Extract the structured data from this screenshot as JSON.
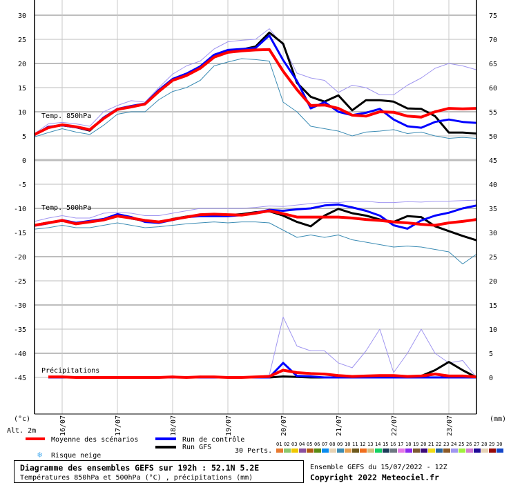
{
  "chart_data": {
    "type": "line",
    "title": "Diagramme des ensembles GEFS sur 192h : 52.1N 5.2E",
    "subtitle": "Températures 850hPa et 500hPa (°C) , précipitations (mm)",
    "run_info": "Ensemble GEFS du 15/07/2022 - 12Z",
    "copyright": "Copyright 2022 Meteociel.fr",
    "x_hours": [
      0,
      6,
      12,
      18,
      24,
      30,
      36,
      42,
      48,
      54,
      60,
      66,
      72,
      78,
      84,
      90,
      96,
      102,
      108,
      114,
      120,
      126,
      132,
      138,
      144,
      150,
      156,
      162,
      168,
      174,
      180,
      186,
      192
    ],
    "date_ticks": [
      {
        "hour": 12,
        "label": "16/07"
      },
      {
        "hour": 36,
        "label": "17/07"
      },
      {
        "hour": 60,
        "label": "18/07"
      },
      {
        "hour": 84,
        "label": "19/07"
      },
      {
        "hour": 108,
        "label": "20/07"
      },
      {
        "hour": 132,
        "label": "21/07"
      },
      {
        "hour": 156,
        "label": "22/07"
      },
      {
        "hour": 180,
        "label": "23/07"
      }
    ],
    "left_axis": {
      "unit_label": "(°c)",
      "altitude_label": "Alt. 2m",
      "ticks": [
        30,
        25,
        20,
        15,
        10,
        5,
        0,
        -5,
        -10,
        -15,
        -20,
        -25,
        -30,
        -35,
        -40,
        -45
      ],
      "range": [
        -45,
        30
      ]
    },
    "right_axis": {
      "unit_label": "(mm)",
      "ticks": [
        75,
        70,
        65,
        60,
        55,
        50,
        45,
        40,
        35,
        30,
        25,
        20,
        15,
        10,
        5,
        0
      ]
    },
    "grid": true,
    "panels": [
      {
        "label": "Temp. 850hPa",
        "mean": [
          5.3,
          6.7,
          7.3,
          6.9,
          6.3,
          8.6,
          10.5,
          11.0,
          11.6,
          14.2,
          16.5,
          17.5,
          19.0,
          21.3,
          22.3,
          22.6,
          22.8,
          22.9,
          18.4,
          14.6,
          11.3,
          11.4,
          10.7,
          9.3,
          9.1,
          10.0,
          9.9,
          9.1,
          8.9,
          10.0,
          10.7,
          10.6,
          10.7
        ],
        "control": [
          5.2,
          6.9,
          7.2,
          6.8,
          6.2,
          8.8,
          10.6,
          11.2,
          11.7,
          14.5,
          16.8,
          17.9,
          19.4,
          21.8,
          22.8,
          23.0,
          23.2,
          25.8,
          20.7,
          16.4,
          10.7,
          12.0,
          10.0,
          9.3,
          9.8,
          10.6,
          8.4,
          7.0,
          6.7,
          7.9,
          8.4,
          7.9,
          7.7
        ],
        "gfs": [
          5.3,
          6.8,
          7.2,
          6.8,
          6.1,
          8.7,
          10.4,
          11.1,
          11.6,
          14.3,
          16.6,
          17.7,
          19.2,
          21.6,
          22.6,
          22.9,
          23.5,
          26.4,
          24.1,
          16.0,
          13.1,
          12.1,
          13.4,
          10.3,
          12.4,
          12.4,
          12.1,
          10.7,
          10.6,
          9.1,
          5.7,
          5.7,
          5.5
        ],
        "perturbation_max": [
          5.5,
          7.5,
          7.8,
          7.5,
          7.0,
          10.0,
          11.3,
          12.3,
          12.0,
          15.0,
          17.8,
          19.5,
          20.5,
          23.0,
          24.5,
          24.8,
          25.0,
          27.2,
          23.7,
          18.0,
          17.0,
          16.5,
          14.0,
          15.5,
          15.0,
          13.5,
          13.5,
          15.5,
          17.0,
          19.0,
          20.0,
          19.5,
          18.7
        ],
        "perturbation_min": [
          4.8,
          5.7,
          6.5,
          5.8,
          5.3,
          7.2,
          9.5,
          10.0,
          10.0,
          12.5,
          14.2,
          15.0,
          16.5,
          19.5,
          20.3,
          21.0,
          20.8,
          20.5,
          12.0,
          10.0,
          7.0,
          6.5,
          6.0,
          5.0,
          5.8,
          6.0,
          6.3,
          5.5,
          5.8,
          5.0,
          4.5,
          4.7,
          4.5
        ]
      },
      {
        "label": "Temp. 500hPa",
        "mean": [
          -13.5,
          -13.0,
          -12.5,
          -13.2,
          -12.8,
          -12.4,
          -11.6,
          -12.0,
          -12.5,
          -12.8,
          -12.3,
          -11.8,
          -11.3,
          -11.2,
          -11.3,
          -11.4,
          -11.0,
          -10.5,
          -11.1,
          -11.8,
          -11.8,
          -11.8,
          -11.8,
          -12.0,
          -12.3,
          -12.5,
          -12.8,
          -13.0,
          -13.3,
          -13.5,
          -13.0,
          -12.7,
          -12.3
        ],
        "control": [
          -13.6,
          -13.1,
          -12.4,
          -13.0,
          -12.6,
          -12.2,
          -11.2,
          -11.8,
          -12.8,
          -13.0,
          -12.4,
          -11.8,
          -11.6,
          -11.6,
          -11.6,
          -11.4,
          -10.9,
          -10.3,
          -10.5,
          -10.2,
          -10.0,
          -9.4,
          -9.2,
          -9.8,
          -10.5,
          -11.5,
          -13.5,
          -14.2,
          -12.5,
          -11.5,
          -10.9,
          -10.0,
          -9.4
        ],
        "gfs": [
          -13.5,
          -12.9,
          -12.6,
          -13.1,
          -12.8,
          -12.3,
          -11.5,
          -12.1,
          -12.6,
          -12.9,
          -12.2,
          -11.7,
          -11.4,
          -11.3,
          -11.4,
          -11.2,
          -10.8,
          -10.6,
          -11.5,
          -12.8,
          -13.7,
          -11.5,
          -10.1,
          -11.0,
          -11.5,
          -12.3,
          -12.8,
          -11.6,
          -11.8,
          -13.7,
          -14.7,
          -15.7,
          -16.6
        ],
        "perturbation_max": [
          -12.7,
          -12.0,
          -11.5,
          -12.0,
          -12.0,
          -11.0,
          -10.8,
          -11.0,
          -11.5,
          -11.5,
          -11.0,
          -10.5,
          -10.0,
          -10.0,
          -10.0,
          -10.0,
          -9.8,
          -9.5,
          -9.6,
          -9.3,
          -9.0,
          -8.8,
          -8.8,
          -8.5,
          -8.5,
          -8.8,
          -8.8,
          -8.6,
          -8.7,
          -8.5,
          -8.5,
          -8.4,
          -8.3
        ],
        "perturbation_min": [
          -14.3,
          -14.0,
          -13.5,
          -14.0,
          -14.0,
          -13.5,
          -13.0,
          -13.5,
          -14.0,
          -13.8,
          -13.5,
          -13.2,
          -13.0,
          -12.8,
          -13.0,
          -12.8,
          -12.8,
          -13.0,
          -14.5,
          -16.0,
          -15.5,
          -16.0,
          -15.5,
          -16.5,
          -17.0,
          -17.5,
          -18.0,
          -17.8,
          -18.0,
          -18.5,
          -19.0,
          -21.5,
          -19.5
        ]
      },
      {
        "label": "Précipitations",
        "x_hours": [
          6,
          12,
          18,
          24,
          30,
          36,
          42,
          48,
          54,
          60,
          66,
          72,
          78,
          84,
          90,
          96,
          102,
          108,
          114,
          120,
          126,
          132,
          138,
          144,
          150,
          156,
          162,
          168,
          174,
          180,
          186,
          192
        ],
        "mean": [
          0.1,
          0.1,
          0,
          0,
          0,
          0,
          0,
          0,
          0,
          0.1,
          0,
          0.1,
          0.1,
          0,
          0,
          0.1,
          0.2,
          1.5,
          1.0,
          0.8,
          0.7,
          0.4,
          0.2,
          0.3,
          0.4,
          0.4,
          0.2,
          0.3,
          0.7,
          0.3,
          0.3,
          0.1
        ],
        "control": [
          0,
          0,
          0,
          0,
          0,
          0,
          0,
          0,
          0,
          0,
          0,
          0,
          0,
          0,
          0,
          0,
          0,
          3.0,
          0.3,
          0.2,
          0,
          0,
          0,
          0,
          0,
          0,
          0,
          0,
          0,
          0,
          0,
          0
        ],
        "gfs": [
          0,
          0,
          0,
          0,
          0,
          0,
          0,
          0,
          0,
          0,
          0,
          0,
          0,
          0,
          0,
          0,
          0,
          0.2,
          0.1,
          0,
          0,
          0,
          0,
          0,
          0,
          0,
          0,
          0.3,
          1.5,
          3.2,
          1.5,
          0
        ],
        "perturbation_max": [
          0.1,
          0.1,
          0,
          0,
          0,
          0,
          0,
          0,
          0.1,
          0.1,
          0.1,
          0.3,
          0.1,
          0.1,
          0.1,
          0.2,
          0.5,
          12.5,
          6.5,
          5.5,
          5.5,
          3.0,
          2.0,
          5.5,
          10.0,
          1.0,
          5.0,
          10.0,
          5.0,
          3.0,
          3.5,
          0
        ]
      }
    ],
    "legend": {
      "mean": {
        "label": "Moyenne des scénarios",
        "color": "#ff0000"
      },
      "control": {
        "label": "Run de contrôle",
        "color": "#0000ff"
      },
      "gfs": {
        "label": "Run GFS",
        "color": "#000000"
      },
      "snow": {
        "label": "Risque neige",
        "icon": "snowflake-icon",
        "color": "#5ab4f0"
      },
      "perturbations_label": "30 Perts.",
      "perturbations": [
        {
          "id": "01",
          "color": "#e87a30"
        },
        {
          "id": "02",
          "color": "#8cc86e"
        },
        {
          "id": "03",
          "color": "#f0c800"
        },
        {
          "id": "04",
          "color": "#8c50a0"
        },
        {
          "id": "05",
          "color": "#b45a14"
        },
        {
          "id": "06",
          "color": "#5a8c14"
        },
        {
          "id": "07",
          "color": "#0a8cf0"
        },
        {
          "id": "08",
          "color": "#e6d2b4"
        },
        {
          "id": "09",
          "color": "#3c8cb4"
        },
        {
          "id": "10",
          "color": "#e6a050"
        },
        {
          "id": "11",
          "color": "#6e5a1e"
        },
        {
          "id": "12",
          "color": "#f06e1e"
        },
        {
          "id": "13",
          "color": "#d2be82"
        },
        {
          "id": "14",
          "color": "#14d264"
        },
        {
          "id": "15",
          "color": "#1e3c5a"
        },
        {
          "id": "16",
          "color": "#6e7882"
        },
        {
          "id": "17",
          "color": "#e678e6"
        },
        {
          "id": "18",
          "color": "#8c28f0"
        },
        {
          "id": "19",
          "color": "#7d5a32"
        },
        {
          "id": "20",
          "color": "#3c0a78"
        },
        {
          "id": "21",
          "color": "#f0dc14"
        },
        {
          "id": "22",
          "color": "#2864a0"
        },
        {
          "id": "23",
          "color": "#8c5a28"
        },
        {
          "id": "24",
          "color": "#a096f0"
        },
        {
          "id": "25",
          "color": "#a0f03c"
        },
        {
          "id": "26",
          "color": "#d278d2"
        },
        {
          "id": "27",
          "color": "#1e0a96"
        },
        {
          "id": "28",
          "color": "#e6d2b4"
        },
        {
          "id": "29",
          "color": "#960a0a"
        },
        {
          "id": "30",
          "color": "#1446c8"
        }
      ]
    }
  }
}
